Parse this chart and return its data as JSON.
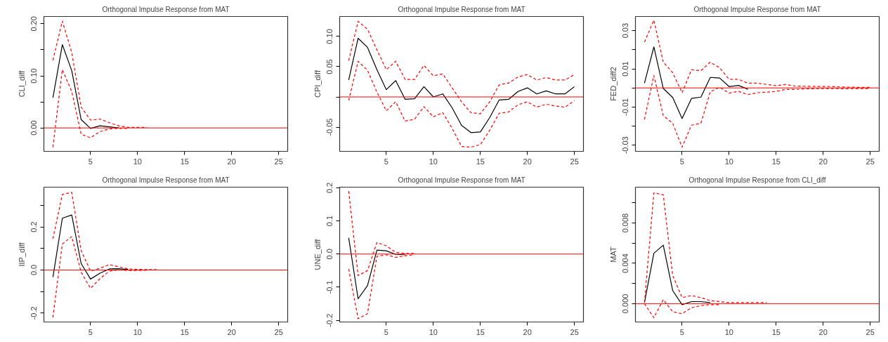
{
  "chart_data": [
    {
      "type": "line",
      "title": "Orthogonal Impulse Response from MAT",
      "ylabel": "CLI_diff",
      "xlim": [
        0.04,
        25.96
      ],
      "xticks": [
        5,
        10,
        15,
        20,
        25
      ],
      "ylim": [
        -0.045,
        0.214
      ],
      "yticks": [
        {
          "value": 0.0,
          "label": "0.00"
        },
        {
          "value": 0.05,
          "label": null
        },
        {
          "value": 0.1,
          "label": "0.10"
        },
        {
          "value": 0.15,
          "label": null
        },
        {
          "value": 0.2,
          "label": "0.20"
        }
      ],
      "grid": false,
      "ref_lines": [
        {
          "axis": "y",
          "value": 0,
          "color": "#ff0000"
        }
      ],
      "series": [
        {
          "color": "#000000",
          "line_style": "solid",
          "x": [
            1,
            2,
            3,
            4,
            5,
            6,
            7,
            8
          ],
          "values": [
            0.058,
            0.16,
            0.11,
            0.016,
            -0.001,
            0.004,
            0.002,
            0.0
          ]
        },
        {
          "color": "#ff0000",
          "line_style": "dashed",
          "x": [
            1,
            2,
            3,
            4,
            5,
            6,
            7,
            8,
            9,
            10,
            11
          ],
          "values": [
            0.13,
            0.205,
            0.145,
            0.04,
            0.015,
            0.017,
            0.01,
            0.004,
            0.001,
            0.001,
            0.001
          ]
        },
        {
          "color": "#ff0000",
          "line_style": "dashed",
          "x": [
            1,
            2,
            3,
            4,
            5,
            6,
            7,
            8,
            9
          ],
          "values": [
            -0.037,
            0.112,
            0.07,
            -0.012,
            -0.019,
            -0.007,
            -0.002,
            -0.001,
            -0.001
          ]
        }
      ]
    },
    {
      "type": "line",
      "title": "Orthogonal Impulse Response from MAT",
      "ylabel": "CPI_diff",
      "xlim": [
        0.04,
        25.96
      ],
      "xticks": [
        5,
        10,
        15,
        20,
        25
      ],
      "ylim": [
        -0.09,
        0.133
      ],
      "yticks": [
        -0.05,
        {
          "value": 0.0,
          "label": null
        },
        0.05,
        {
          "value": 0.1,
          "label": "0.10"
        }
      ],
      "grid": false,
      "ref_lines": [
        {
          "axis": "y",
          "value": 0,
          "color": "#ff0000"
        }
      ],
      "series": [
        {
          "color": "#000000",
          "line_style": "solid",
          "x": [
            1,
            2,
            3,
            4,
            5,
            6,
            7,
            8,
            9,
            10,
            11,
            12,
            13,
            14,
            15,
            16,
            17,
            18,
            19,
            20,
            21,
            22,
            23,
            24,
            25
          ],
          "values": [
            0.028,
            0.097,
            0.082,
            0.045,
            0.012,
            0.027,
            -0.004,
            -0.003,
            0.017,
            0.0,
            0.005,
            -0.018,
            -0.047,
            -0.059,
            -0.058,
            -0.034,
            -0.005,
            -0.004,
            0.009,
            0.015,
            0.005,
            0.01,
            0.005,
            0.005,
            0.017
          ]
        },
        {
          "color": "#ff0000",
          "line_style": "dashed",
          "x": [
            1,
            2,
            3,
            4,
            5,
            6,
            7,
            8,
            9,
            10,
            11,
            12,
            13,
            14,
            15,
            16,
            17,
            18,
            19,
            20,
            21,
            22,
            23,
            24,
            25
          ],
          "values": [
            0.06,
            0.125,
            0.112,
            0.078,
            0.045,
            0.059,
            0.029,
            0.029,
            0.052,
            0.035,
            0.038,
            0.015,
            -0.008,
            -0.026,
            -0.028,
            -0.008,
            0.02,
            0.023,
            0.033,
            0.037,
            0.028,
            0.032,
            0.028,
            0.028,
            0.037
          ]
        },
        {
          "color": "#ff0000",
          "line_style": "dashed",
          "x": [
            1,
            2,
            3,
            4,
            5,
            6,
            7,
            8,
            9,
            10,
            11,
            12,
            13,
            14,
            15,
            16,
            17,
            18,
            19,
            20,
            21,
            22,
            23,
            24,
            25
          ],
          "values": [
            -0.006,
            0.059,
            0.044,
            0.008,
            -0.023,
            -0.008,
            -0.04,
            -0.037,
            -0.016,
            -0.033,
            -0.026,
            -0.052,
            -0.082,
            -0.083,
            -0.079,
            -0.055,
            -0.027,
            -0.025,
            -0.013,
            -0.008,
            -0.017,
            -0.012,
            -0.015,
            -0.017,
            -0.006
          ]
        }
      ]
    },
    {
      "type": "line",
      "title": "Orthogonal Impulse Response from MAT",
      "ylabel": "FED_diff2",
      "xlim": [
        0.04,
        25.96
      ],
      "xticks": [
        5,
        10,
        15,
        20,
        25
      ],
      "ylim": [
        -0.0332,
        0.0374
      ],
      "yticks": [
        -0.03,
        {
          "value": -0.02,
          "label": null
        },
        -0.01,
        {
          "value": 0.0,
          "label": null
        },
        0.01,
        {
          "value": 0.02,
          "label": null
        },
        0.03
      ],
      "grid": false,
      "ref_lines": [
        {
          "axis": "y",
          "value": 0,
          "color": "#ff0000"
        }
      ],
      "series": [
        {
          "color": "#000000",
          "line_style": "solid",
          "x": [
            1,
            2,
            3,
            4,
            5,
            6,
            7,
            8,
            9,
            10,
            11,
            12
          ],
          "values": [
            0.0025,
            0.0215,
            -0.0003,
            -0.005,
            -0.016,
            -0.0055,
            -0.0048,
            0.0055,
            0.0052,
            0.0007,
            0.0013,
            -0.0007
          ]
        },
        {
          "color": "#ff0000",
          "line_style": "dashed",
          "x": [
            1,
            2,
            3,
            4,
            5,
            6,
            7,
            8,
            9,
            10,
            11,
            12,
            13,
            14,
            15,
            16,
            17,
            18,
            19,
            20,
            21,
            22,
            23,
            24,
            25
          ],
          "values": [
            0.024,
            0.0355,
            0.0135,
            0.008,
            -0.0025,
            0.0095,
            0.009,
            0.0135,
            0.0105,
            0.0045,
            0.0045,
            0.0025,
            0.0025,
            0.0018,
            0.0012,
            0.0018,
            0.001,
            0.0009,
            0.0008,
            0.0008,
            0.0007,
            0.0005,
            0.0004,
            0.0003,
            0.0003
          ]
        },
        {
          "color": "#ff0000",
          "line_style": "dashed",
          "x": [
            1,
            2,
            3,
            4,
            5,
            6,
            7,
            8,
            9,
            10,
            11,
            12,
            13,
            14,
            15,
            16,
            17,
            18,
            19,
            20,
            21,
            22,
            23,
            24,
            25
          ],
          "values": [
            -0.0165,
            0.0065,
            -0.0145,
            -0.0185,
            -0.031,
            -0.0195,
            -0.0185,
            -0.002,
            0.0003,
            -0.0027,
            -0.0018,
            -0.0035,
            -0.0025,
            -0.0022,
            -0.0018,
            -0.0008,
            -0.0008,
            -0.0005,
            -0.0004,
            -0.0003,
            -0.0003,
            -0.0004,
            -0.0003,
            -0.0003,
            -0.0003
          ]
        }
      ]
    },
    {
      "type": "line",
      "title": "Orthogonal Impulse Response from MAT",
      "ylabel": "IIP_diff",
      "xlim": [
        0.04,
        25.96
      ],
      "xticks": [
        5,
        10,
        15,
        20,
        25
      ],
      "ylim": [
        -0.241,
        0.384
      ],
      "yticks": [
        -0.2,
        {
          "value": -0.1,
          "label": null
        },
        {
          "value": 0.0,
          "label": "0.0"
        },
        {
          "value": 0.1,
          "label": null
        },
        0.2,
        {
          "value": 0.3,
          "label": null
        }
      ],
      "grid": false,
      "ref_lines": [
        {
          "axis": "y",
          "value": 0,
          "color": "#ff0000"
        }
      ],
      "series": [
        {
          "color": "#000000",
          "line_style": "solid",
          "x": [
            1,
            2,
            3,
            4,
            5,
            6,
            7,
            8,
            9
          ],
          "values": [
            -0.033,
            0.24,
            0.255,
            0.03,
            -0.042,
            -0.015,
            0.005,
            0.006,
            0.002
          ]
        },
        {
          "color": "#ff0000",
          "line_style": "dashed",
          "x": [
            1,
            2,
            3,
            4,
            5,
            6,
            7,
            8,
            9,
            10,
            11,
            12
          ],
          "values": [
            0.145,
            0.35,
            0.36,
            0.09,
            -0.005,
            0.008,
            0.025,
            0.015,
            0.005,
            0.003,
            0.002,
            0.002
          ]
        },
        {
          "color": "#ff0000",
          "line_style": "dashed",
          "x": [
            1,
            2,
            3,
            4,
            5,
            6,
            7,
            8,
            9,
            10,
            11
          ],
          "values": [
            -0.22,
            0.12,
            0.155,
            -0.01,
            -0.085,
            -0.04,
            -0.005,
            0.0,
            -0.002,
            -0.002,
            -0.001
          ]
        }
      ]
    },
    {
      "type": "line",
      "title": "Orthogonal Impulse Response from MAT",
      "ylabel": "UNE_diff",
      "xlim": [
        0.04,
        25.96
      ],
      "xticks": [
        5,
        10,
        15,
        20,
        25
      ],
      "ylim": [
        -0.205,
        0.202
      ],
      "yticks": [
        -0.2,
        -0.1,
        {
          "value": 0.0,
          "label": "0.0"
        },
        0.1,
        0.2
      ],
      "grid": false,
      "ref_lines": [
        {
          "axis": "y",
          "value": 0,
          "color": "#ff0000"
        }
      ],
      "series": [
        {
          "color": "#000000",
          "line_style": "solid",
          "x": [
            1,
            2,
            3,
            4,
            5,
            6,
            7
          ],
          "values": [
            0.049,
            -0.135,
            -0.095,
            0.012,
            0.01,
            -0.001,
            -0.002
          ]
        },
        {
          "color": "#ff0000",
          "line_style": "dashed",
          "x": [
            1,
            2,
            3,
            4,
            5,
            6,
            7,
            8
          ],
          "values": [
            0.19,
            -0.065,
            -0.05,
            0.035,
            0.025,
            0.005,
            0.002,
            0.002
          ]
        },
        {
          "color": "#ff0000",
          "line_style": "dashed",
          "x": [
            1,
            2,
            3,
            4,
            5,
            6,
            7,
            8
          ],
          "values": [
            -0.045,
            -0.195,
            -0.18,
            -0.007,
            -0.002,
            -0.01,
            -0.005,
            -0.002
          ]
        }
      ]
    },
    {
      "type": "line",
      "title": "Orthogonal Impulse Response from CLI_diff",
      "ylabel": "MAT",
      "xlim": [
        0.04,
        25.96
      ],
      "xticks": [
        5,
        10,
        15,
        20,
        25
      ],
      "ylim": [
        -0.00182,
        0.01156
      ],
      "yticks": [
        {
          "value": 0.0,
          "label": "0.000"
        },
        {
          "value": 0.002,
          "label": null
        },
        0.004,
        {
          "value": 0.006,
          "label": null
        },
        0.008,
        {
          "value": 0.01,
          "label": null
        }
      ],
      "grid": false,
      "ref_lines": [
        {
          "axis": "y",
          "value": 0,
          "color": "#ff0000"
        }
      ],
      "series": [
        {
          "color": "#000000",
          "line_style": "solid",
          "x": [
            1,
            2,
            3,
            4,
            5,
            6,
            7,
            8
          ],
          "values": [
            0.0001,
            0.005,
            0.0058,
            0.0013,
            -0.0001,
            0.0002,
            0.0002,
            0.0001
          ]
        },
        {
          "color": "#ff0000",
          "line_style": "dashed",
          "x": [
            1,
            2,
            3,
            4,
            5,
            6,
            7,
            8,
            9,
            10,
            11,
            12,
            13,
            14
          ],
          "values": [
            0.0001,
            0.011,
            0.0108,
            0.0028,
            0.0006,
            0.0008,
            0.0006,
            0.0003,
            0.0002,
            0.0001,
            0.0001,
            0.0001,
            0.0001,
            0.0001
          ]
        },
        {
          "color": "#ff0000",
          "line_style": "dashed",
          "x": [
            1,
            2,
            3,
            4,
            5,
            6,
            7,
            8,
            9
          ],
          "values": [
            0.0,
            -0.0014,
            0.0004,
            -0.0008,
            -0.001,
            -0.0004,
            -0.0002,
            -0.0001,
            -0.0001
          ]
        }
      ]
    }
  ]
}
